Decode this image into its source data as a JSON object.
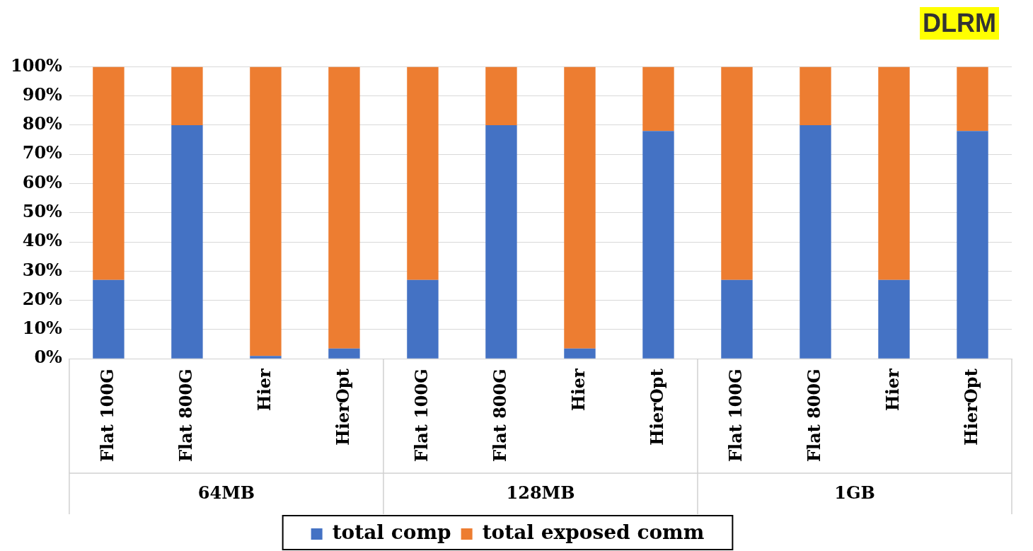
{
  "chart_data": {
    "type": "bar",
    "title": "DLRM",
    "stacked": true,
    "categories": [
      "Flat 100G",
      "Flat 800G",
      "Hier",
      "HierOpt",
      "Flat 100G",
      "Flat 800G",
      "Hier",
      "HierOpt",
      "Flat 100G",
      "Flat 800G",
      "Hier",
      "HierOpt"
    ],
    "series": [
      {
        "name": "total comp",
        "color": "#4472c4",
        "values": [
          27,
          80,
          1,
          3.5,
          27,
          80,
          3.5,
          78,
          27,
          80,
          27,
          78
        ]
      },
      {
        "name": "total exposed comm",
        "color": "#ed7d31",
        "values": [
          73,
          20,
          99,
          96.5,
          73,
          20,
          96.5,
          22,
          73,
          20,
          73,
          22
        ]
      }
    ],
    "ylim": [
      0,
      100
    ],
    "yticks": [
      {
        "value": 0,
        "label": "0%"
      },
      {
        "value": 10,
        "label": "10%"
      },
      {
        "value": 20,
        "label": "20%"
      },
      {
        "value": 30,
        "label": "30%"
      },
      {
        "value": 40,
        "label": "40%"
      },
      {
        "value": 50,
        "label": "50%"
      },
      {
        "value": 60,
        "label": "60%"
      },
      {
        "value": 70,
        "label": "70%"
      },
      {
        "value": 80,
        "label": "80%"
      },
      {
        "value": 90,
        "label": "90%"
      },
      {
        "value": 100,
        "label": "100%"
      }
    ],
    "grid": "y",
    "legend": "bottom",
    "annotations": [
      "64MB",
      "128MB",
      "1GB"
    ]
  }
}
